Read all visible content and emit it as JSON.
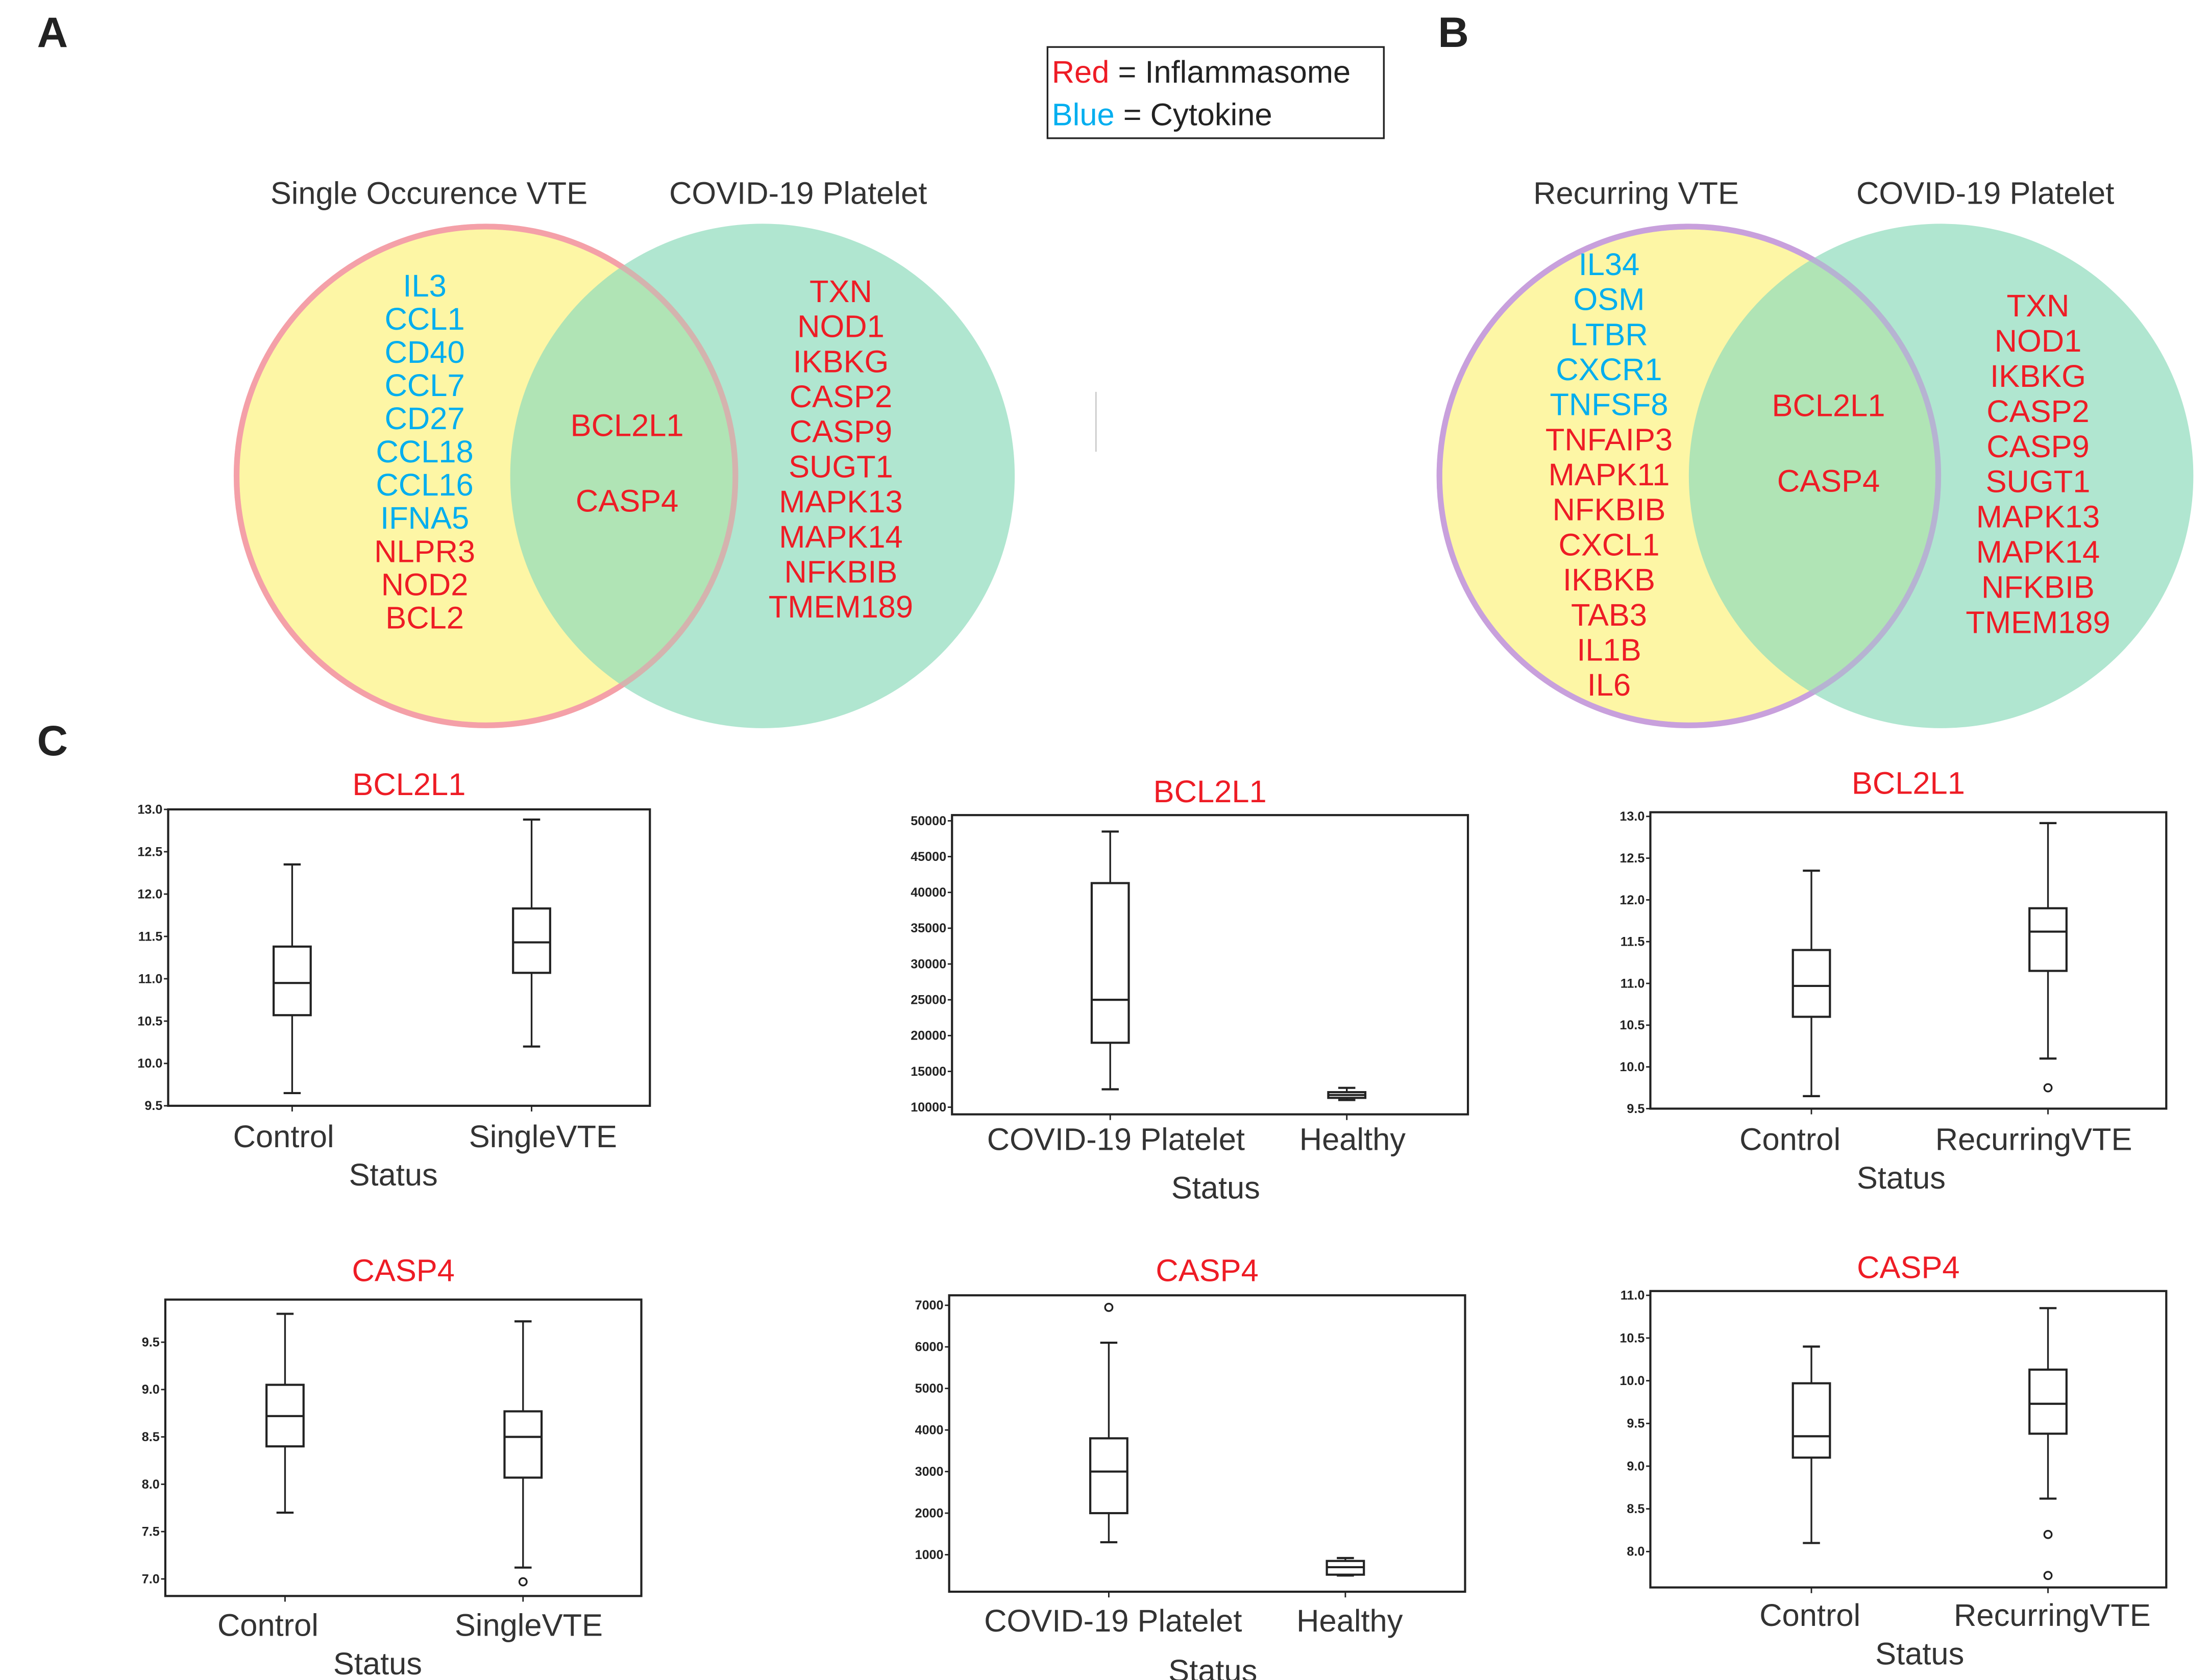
{
  "panels": {
    "a": "A",
    "b": "B",
    "c": "C"
  },
  "legend": {
    "red_word": "Red",
    "red_rest": " = Inflammasome",
    "blue_word": "Blue",
    "blue_rest": " = Cytokine"
  },
  "colors": {
    "red": "#ee1c25",
    "blue": "#00aeef",
    "yellow": "#fdf6a0",
    "green": "#8fdcbc",
    "pink": "#f4a0a8",
    "purple": "#c8a0dc"
  },
  "venn_a": {
    "left_title": "Single Occurence  VTE",
    "right_title": "COVID-19 Platelet",
    "left_only": [
      {
        "g": "IL3",
        "c": "blue"
      },
      {
        "g": "CCL1",
        "c": "blue"
      },
      {
        "g": "CD40",
        "c": "blue"
      },
      {
        "g": "CCL7",
        "c": "blue"
      },
      {
        "g": "CD27",
        "c": "blue"
      },
      {
        "g": "CCL18",
        "c": "blue"
      },
      {
        "g": "CCL16",
        "c": "blue"
      },
      {
        "g": "IFNA5",
        "c": "blue"
      },
      {
        "g": "NLPR3",
        "c": "red"
      },
      {
        "g": "NOD2",
        "c": "red"
      },
      {
        "g": "BCL2",
        "c": "red"
      }
    ],
    "shared": [
      {
        "g": "BCL2L1",
        "c": "red"
      },
      {
        "g": "CASP4",
        "c": "red"
      }
    ],
    "right_only": [
      {
        "g": "TXN",
        "c": "red"
      },
      {
        "g": "NOD1",
        "c": "red"
      },
      {
        "g": "IKBKG",
        "c": "red"
      },
      {
        "g": "CASP2",
        "c": "red"
      },
      {
        "g": "CASP9",
        "c": "red"
      },
      {
        "g": "SUGT1",
        "c": "red"
      },
      {
        "g": "MAPK13",
        "c": "red"
      },
      {
        "g": "MAPK14",
        "c": "red"
      },
      {
        "g": "NFKBIB",
        "c": "red"
      },
      {
        "g": "TMEM189",
        "c": "red"
      }
    ]
  },
  "venn_b": {
    "left_title": "Recurring VTE",
    "right_title": "COVID-19 Platelet",
    "left_only": [
      {
        "g": "IL34",
        "c": "blue"
      },
      {
        "g": "OSM",
        "c": "blue"
      },
      {
        "g": "LTBR",
        "c": "blue"
      },
      {
        "g": "CXCR1",
        "c": "blue"
      },
      {
        "g": "TNFSF8",
        "c": "blue"
      },
      {
        "g": "TNFAIP3",
        "c": "red"
      },
      {
        "g": "MAPK11",
        "c": "red"
      },
      {
        "g": "NFKBIB",
        "c": "red"
      },
      {
        "g": "CXCL1",
        "c": "red"
      },
      {
        "g": "IKBKB",
        "c": "red"
      },
      {
        "g": "TAB3",
        "c": "red"
      },
      {
        "g": "IL1B",
        "c": "red"
      },
      {
        "g": "IL6",
        "c": "red"
      }
    ],
    "shared": [
      {
        "g": "BCL2L1",
        "c": "red"
      },
      {
        "g": "CASP4",
        "c": "red"
      }
    ],
    "right_only": [
      {
        "g": "TXN",
        "c": "red"
      },
      {
        "g": "NOD1",
        "c": "red"
      },
      {
        "g": "IKBKG",
        "c": "red"
      },
      {
        "g": "CASP2",
        "c": "red"
      },
      {
        "g": "CASP9",
        "c": "red"
      },
      {
        "g": "SUGT1",
        "c": "red"
      },
      {
        "g": "MAPK13",
        "c": "red"
      },
      {
        "g": "MAPK14",
        "c": "red"
      },
      {
        "g": "NFKBIB",
        "c": "red"
      },
      {
        "g": "TMEM189",
        "c": "red"
      }
    ]
  },
  "chart_data": [
    {
      "type": "box",
      "title": "BCL2L1",
      "xlabel": "Status",
      "ylim": [
        9.5,
        13.0
      ],
      "yticks": [
        "9.5",
        "10.0",
        "10.5",
        "11.0",
        "11.5",
        "12.0",
        "12.5",
        "13.0"
      ],
      "categories": [
        "Control",
        "SingleVTE"
      ],
      "boxes": [
        {
          "whislo": 9.65,
          "q1": 10.57,
          "med": 10.95,
          "q3": 11.38,
          "whishi": 12.35,
          "fliers": []
        },
        {
          "whislo": 10.2,
          "q1": 11.07,
          "med": 11.43,
          "q3": 11.83,
          "whishi": 12.88,
          "fliers": []
        }
      ]
    },
    {
      "type": "box",
      "title": "BCL2L1",
      "xlabel": "Status",
      "ylim": [
        9000,
        50800
      ],
      "yticks": [
        "10000",
        "15000",
        "20000",
        "25000",
        "30000",
        "35000",
        "40000",
        "45000",
        "50000"
      ],
      "categories": [
        "COVID-19 Platelet",
        "Healthy"
      ],
      "boxes": [
        {
          "whislo": 12500,
          "q1": 19000,
          "med": 25000,
          "q3": 41300,
          "whishi": 48500,
          "fliers": []
        },
        {
          "whislo": 11000,
          "q1": 11300,
          "med": 11700,
          "q3": 12100,
          "whishi": 12700,
          "fliers": []
        }
      ]
    },
    {
      "type": "box",
      "title": "BCL2L1",
      "xlabel": "Status",
      "ylim": [
        9.5,
        13.05
      ],
      "yticks": [
        "9.5",
        "10.0",
        "10.5",
        "11.0",
        "11.5",
        "12.0",
        "12.5",
        "13.0"
      ],
      "categories": [
        "Control",
        "RecurringVTE"
      ],
      "boxes": [
        {
          "whislo": 9.65,
          "q1": 10.6,
          "med": 10.97,
          "q3": 11.4,
          "whishi": 12.35,
          "fliers": []
        },
        {
          "whislo": 10.1,
          "q1": 11.15,
          "med": 11.62,
          "q3": 11.9,
          "whishi": 12.92,
          "fliers": [
            9.75
          ]
        }
      ]
    },
    {
      "type": "box",
      "title": "CASP4",
      "xlabel": "Status",
      "ylim": [
        6.82,
        9.95
      ],
      "yticks": [
        "7.0",
        "7.5",
        "8.0",
        "8.5",
        "9.0",
        "9.5"
      ],
      "categories": [
        "Control",
        "SingleVTE"
      ],
      "boxes": [
        {
          "whislo": 7.7,
          "q1": 8.4,
          "med": 8.72,
          "q3": 9.05,
          "whishi": 9.8,
          "fliers": []
        },
        {
          "whislo": 7.12,
          "q1": 8.07,
          "med": 8.5,
          "q3": 8.77,
          "whishi": 9.72,
          "fliers": [
            6.97
          ]
        }
      ]
    },
    {
      "type": "box",
      "title": "CASP4",
      "xlabel": "Status",
      "ylim": [
        110,
        7240
      ],
      "yticks": [
        "1000",
        "2000",
        "3000",
        "4000",
        "5000",
        "6000",
        "7000"
      ],
      "categories": [
        "COVID-19 Platelet",
        "Healthy"
      ],
      "boxes": [
        {
          "whislo": 1300,
          "q1": 2000,
          "med": 3000,
          "q3": 3800,
          "whishi": 6100,
          "fliers": [
            6950
          ]
        },
        {
          "whislo": 500,
          "q1": 520,
          "med": 700,
          "q3": 850,
          "whishi": 920,
          "fliers": []
        }
      ]
    },
    {
      "type": "box",
      "title": "CASP4",
      "xlabel": "Status",
      "ylim": [
        7.58,
        11.05
      ],
      "yticks": [
        "8.0",
        "8.5",
        "9.0",
        "9.5",
        "10.0",
        "10.5",
        "11.0"
      ],
      "categories": [
        "Control",
        "RecurringVTE"
      ],
      "boxes": [
        {
          "whislo": 8.1,
          "q1": 9.1,
          "med": 9.35,
          "q3": 9.97,
          "whishi": 10.4,
          "fliers": []
        },
        {
          "whislo": 8.62,
          "q1": 9.38,
          "med": 9.73,
          "q3": 10.13,
          "whishi": 10.85,
          "fliers": [
            8.2,
            7.72
          ]
        }
      ]
    }
  ]
}
